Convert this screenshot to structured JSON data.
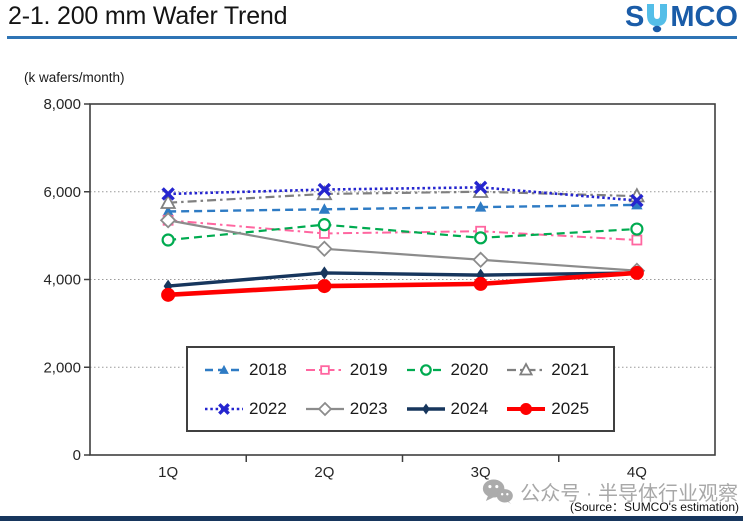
{
  "header": {
    "title": "2-1. 200 mm Wafer Trend",
    "logo": {
      "text": "SUMCO",
      "s": "S",
      "mco": "MCO"
    }
  },
  "chart_data": {
    "type": "line",
    "title": "2-1. 200 mm Wafer Trend",
    "unit_label": "(k wafers/month)",
    "categories": [
      "1Q",
      "2Q",
      "3Q",
      "4Q"
    ],
    "ylim": [
      0,
      8000
    ],
    "yticks": [
      0,
      2000,
      4000,
      6000,
      8000
    ],
    "ytick_labels": [
      "0",
      "2,000",
      "4,000",
      "6,000",
      "8,000"
    ],
    "grid": "horizontal dotted lines at 2000, 4000, 6000",
    "legend_position": "inside bottom, 2 rows x 4 columns",
    "series": [
      {
        "name": "2018",
        "values": [
          5550,
          5600,
          5650,
          5700
        ],
        "color": "#2E7BC4",
        "line_style": "dashed",
        "line_width": 2.4,
        "marker": "triangle-filled"
      },
      {
        "name": "2019",
        "values": [
          5350,
          5050,
          5100,
          4900
        ],
        "color": "#FF66A0",
        "line_style": "dashdot",
        "line_width": 2.0,
        "marker": "square-open"
      },
      {
        "name": "2020",
        "values": [
          4900,
          5250,
          4950,
          5150
        ],
        "color": "#00AB50",
        "line_style": "dashed",
        "line_width": 2.2,
        "marker": "circle-open"
      },
      {
        "name": "2021",
        "values": [
          5750,
          5950,
          6000,
          5900
        ],
        "color": "#808080",
        "line_style": "dashdot",
        "line_width": 2.2,
        "marker": "triangle-open"
      },
      {
        "name": "2022",
        "values": [
          5950,
          6050,
          6100,
          5800
        ],
        "color": "#2525CF",
        "line_style": "dotted",
        "line_width": 2.6,
        "marker": "x"
      },
      {
        "name": "2023",
        "values": [
          5350,
          4700,
          4450,
          4200
        ],
        "color": "#8C8C8C",
        "line_style": "solid",
        "line_width": 2.2,
        "marker": "diamond-open"
      },
      {
        "name": "2024",
        "values": [
          3850,
          4150,
          4100,
          4150
        ],
        "color": "#17365D",
        "line_style": "solid",
        "line_width": 3.4,
        "marker": "diamond-filled"
      },
      {
        "name": "2025",
        "values": [
          3650,
          3850,
          3900,
          4150
        ],
        "color": "#FE0000",
        "line_style": "solid",
        "line_width": 4.6,
        "marker": "circle-filled"
      }
    ]
  },
  "watermark": {
    "icon": "wechat-icon",
    "text": "公众号 · 半导体行业观察"
  },
  "source_note": "(Source：SUMCO's estimation)",
  "colors": {
    "header_rule": "#2E74B5",
    "bottom_bar": "#17365D",
    "logo_dark_blue": "#1A5CA8",
    "logo_light_blue": "#54BEE8",
    "watermark_gray": "#A8A8A8",
    "axis": "#3F3F3F",
    "gridline": "#9A9A9A"
  }
}
